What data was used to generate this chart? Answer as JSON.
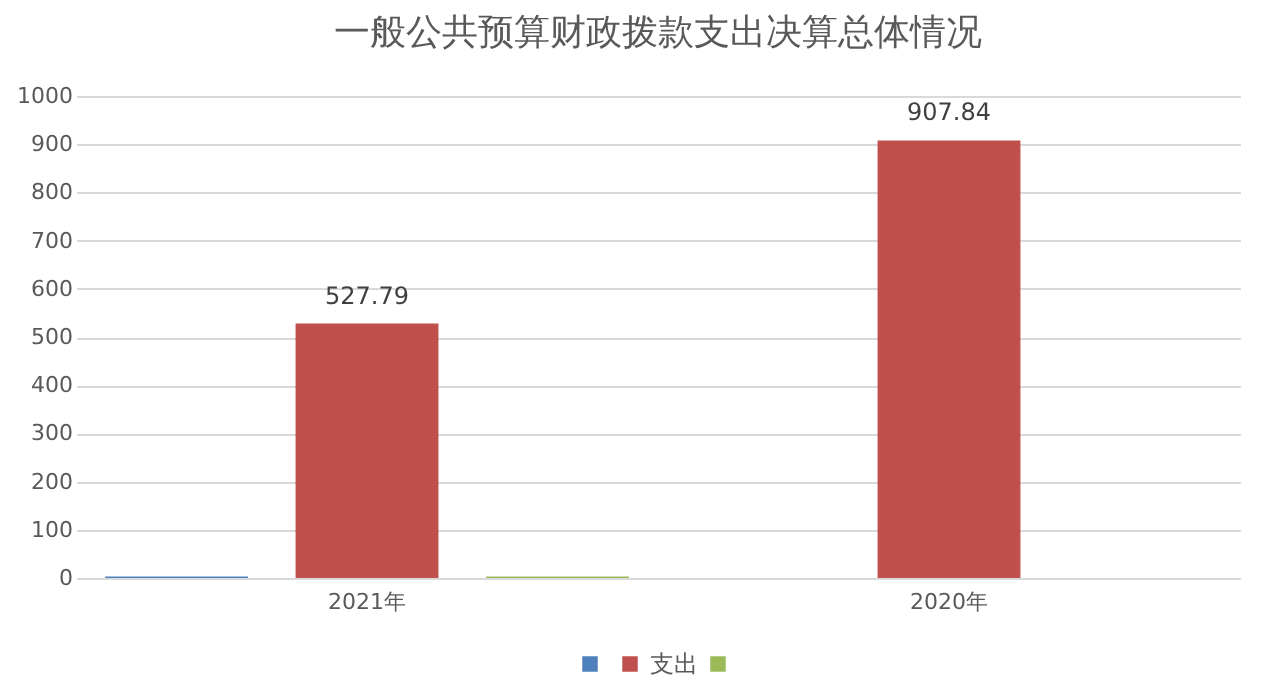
{
  "chart_data": {
    "type": "bar",
    "title": "一般公共预算财政拨款支出决算总体情况",
    "categories": [
      "2021年",
      "2020年"
    ],
    "series": [
      {
        "color": "#4f81bd",
        "values": [
          3,
          null
        ]
      },
      {
        "name": "支出",
        "color": "#c0504d",
        "values": [
          527.79,
          907.84
        ],
        "value_labels": [
          "527.79",
          "907.84"
        ]
      },
      {
        "color": "#9bbb59",
        "values": [
          3,
          null
        ]
      }
    ],
    "ylim": [
      0,
      1000
    ],
    "yticks": [
      0,
      100,
      200,
      300,
      400,
      500,
      600,
      700,
      800,
      900,
      1000
    ],
    "grid": "y",
    "legend": "bottom"
  }
}
